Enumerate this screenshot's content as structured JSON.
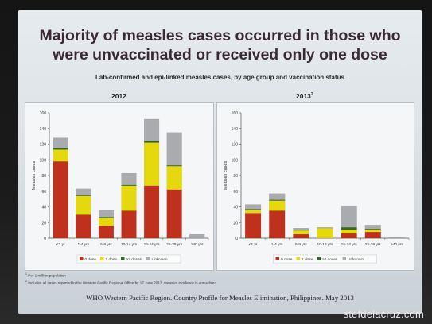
{
  "slide": {
    "headline_line1": "Majority of measles cases occurred in those who",
    "headline_line2": "were unvaccinated or received only one dose",
    "subtitle": "Lab-confirmed and epi-linked measles cases, by age group and vaccination status",
    "footnote1_marker": "1",
    "footnote1": "Per 1 million population",
    "footnote2_marker": "2",
    "footnote2": "Includes all cases reported to the Western Pacific Regional Office by 17 June 2013, measles incidence is annualized",
    "source": "WHO Western Pacific Region. Country Profile for Measles Elimination, Philippines. May 2013",
    "watermark": "stefdelacruz.com"
  },
  "colors": {
    "0 dose": "#c0311d",
    "1 dose": "#e5d80c",
    "≥2 doses": "#2e6b2a",
    "Unknown": "#a9abae"
  },
  "chart_data": [
    {
      "type": "bar",
      "stacked": true,
      "title": "2012",
      "title_superscript": "",
      "ylabel": "Measles cases",
      "ylim": [
        0,
        160
      ],
      "yticks": [
        0,
        20,
        40,
        60,
        80,
        100,
        120,
        140,
        160
      ],
      "categories": [
        "<1 yr",
        "1-4 yrs",
        "5-9 yrs",
        "10-14 yrs",
        "15-24 yrs",
        "25-39 yrs",
        "≥40 yrs"
      ],
      "series": [
        {
          "name": "0 dose",
          "values": [
            98,
            30,
            16,
            35,
            67,
            62,
            0
          ]
        },
        {
          "name": "1 dose",
          "values": [
            15,
            24,
            10,
            32,
            55,
            30,
            0
          ]
        },
        {
          "name": "≥2 doses",
          "values": [
            2,
            1,
            1,
            1,
            2,
            1,
            0
          ]
        },
        {
          "name": "Unknown",
          "values": [
            13,
            8,
            9,
            15,
            28,
            42,
            5
          ]
        }
      ],
      "legend_position": "bottom"
    },
    {
      "type": "bar",
      "stacked": true,
      "title": "2013",
      "title_superscript": "2",
      "ylabel": "Measles cases",
      "ylim": [
        0,
        160
      ],
      "yticks": [
        0,
        20,
        40,
        60,
        80,
        100,
        120,
        140,
        160
      ],
      "categories": [
        "<1 yr",
        "1-4 yrs",
        "5-9 yrs",
        "10-14 yrs",
        "15-24 yrs",
        "25-39 yrs",
        "≥40 yrs"
      ],
      "series": [
        {
          "name": "0 dose",
          "values": [
            32,
            35,
            5,
            0,
            6,
            8,
            0
          ]
        },
        {
          "name": "1 dose",
          "values": [
            4,
            13,
            5,
            13,
            5,
            3,
            0
          ]
        },
        {
          "name": "≥2 doses",
          "values": [
            1,
            1,
            1,
            0,
            3,
            1,
            0
          ]
        },
        {
          "name": "Unknown",
          "values": [
            6,
            8,
            2,
            1,
            27,
            5,
            1
          ]
        }
      ],
      "legend_position": "bottom"
    }
  ]
}
